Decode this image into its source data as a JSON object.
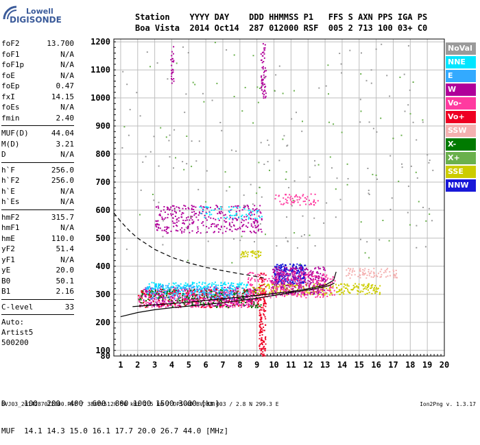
{
  "logo": {
    "line1": "Lowell",
    "line2": "DIGISONDE"
  },
  "header": {
    "line1": "Station    YYYY DAY    DDD HHMMSS P1   FFS S AXN PPS IGA PS",
    "line2": "Boa Vista  2014 Oct14  287 012000 RSF  005 2 713 100 03+ C0"
  },
  "params": [
    {
      "k": "foF2",
      "v": "13.700"
    },
    {
      "k": "foF1",
      "v": "N/A"
    },
    {
      "k": "foF1p",
      "v": "N/A"
    },
    {
      "k": "foE",
      "v": "N/A"
    },
    {
      "k": "foEp",
      "v": "0.47"
    },
    {
      "k": "fxI",
      "v": "14.15"
    },
    {
      "k": "foEs",
      "v": "N/A"
    },
    {
      "k": "fmin",
      "v": "2.40"
    },
    {
      "sep": true
    },
    {
      "k": "MUF(D)",
      "v": "44.04"
    },
    {
      "k": "M(D)",
      "v": "3.21"
    },
    {
      "k": "D",
      "v": "N/A"
    },
    {
      "sep": true
    },
    {
      "k": "h`F",
      "v": "256.0"
    },
    {
      "k": "h`F2",
      "v": "256.0"
    },
    {
      "k": "h`E",
      "v": "N/A"
    },
    {
      "k": "h`Es",
      "v": "N/A"
    },
    {
      "sep": true
    },
    {
      "k": "hmF2",
      "v": "315.7"
    },
    {
      "k": "hmF1",
      "v": "N/A"
    },
    {
      "k": "hmE",
      "v": "110.0"
    },
    {
      "k": "yF2",
      "v": "51.4"
    },
    {
      "k": "yF1",
      "v": "N/A"
    },
    {
      "k": "yE",
      "v": "20.0"
    },
    {
      "k": "B0",
      "v": "50.1"
    },
    {
      "k": "B1",
      "v": "2.16"
    },
    {
      "sep": true
    },
    {
      "k": "C-level",
      "v": "33"
    },
    {
      "sep": true
    },
    {
      "t": "Auto:"
    },
    {
      "t": "Artist5"
    },
    {
      "t": "500200"
    }
  ],
  "legend": [
    {
      "label": "NoVal",
      "color": "#9a9a9a"
    },
    {
      "label": "NNE",
      "color": "#00e5ff"
    },
    {
      "label": "E",
      "color": "#33aaff"
    },
    {
      "label": "W",
      "color": "#b0009a"
    },
    {
      "label": "Vo-",
      "color": "#ff3aa0"
    },
    {
      "label": "Vo+",
      "color": "#ee0022"
    },
    {
      "label": "SSW",
      "color": "#f4b0b0"
    },
    {
      "label": "X-",
      "color": "#007a00"
    },
    {
      "label": "X+",
      "color": "#6ab04c"
    },
    {
      "label": "SSE",
      "color": "#cccc00"
    },
    {
      "label": "NNW",
      "color": "#1818d8"
    }
  ],
  "bottom": {
    "line1": "D    100  200  400  600  800 1000 1500 3000 [km]",
    "line2": "MUF  14.1 14.3 15.0 16.1 17.7 20.0 26.7 44.0 [MHz]"
  },
  "footer": {
    "text": "BVJ03_2014287012000.RSF / 384fx512h 50 kHz 2.5 km / DPS-4D BVJ03 003 / 2.8 N 299.3 E",
    "version": "Ion2Png v. 1.3.17"
  },
  "chart_data": {
    "type": "scatter",
    "xlim": [
      0.6,
      20
    ],
    "ylim": [
      80,
      1210
    ],
    "x_ticks": [
      1,
      2,
      3,
      4,
      5,
      6,
      7,
      8,
      9,
      10,
      11,
      12,
      13,
      14,
      15,
      16,
      17,
      18,
      19,
      20
    ],
    "y_ticks": [
      80,
      100,
      200,
      300,
      400,
      500,
      600,
      700,
      800,
      900,
      1000,
      1100,
      1200
    ],
    "grid": true,
    "clusters": [
      {
        "cat": "Vo-",
        "x": [
          2.0,
          9.2
        ],
        "y": [
          255,
          320
        ],
        "n": 500
      },
      {
        "cat": "W",
        "x": [
          2.2,
          9.0
        ],
        "y": [
          260,
          330
        ],
        "n": 350
      },
      {
        "cat": "NNE",
        "x": [
          2.5,
          8.5
        ],
        "y": [
          300,
          345
        ],
        "n": 250
      },
      {
        "cat": "E",
        "x": [
          2.4,
          7.6
        ],
        "y": [
          285,
          335
        ],
        "n": 150
      },
      {
        "cat": "X-",
        "x": [
          2.0,
          9.2
        ],
        "y": [
          255,
          320
        ],
        "n": 180
      },
      {
        "cat": "Vo+",
        "x": [
          2.0,
          9.2
        ],
        "y": [
          255,
          320
        ],
        "n": 120
      },
      {
        "cat": "SSE",
        "x": [
          8.7,
          16.2
        ],
        "y": [
          300,
          340
        ],
        "n": 300
      },
      {
        "cat": "NNW",
        "x": [
          10.0,
          11.8
        ],
        "y": [
          340,
          410
        ],
        "n": 260
      },
      {
        "cat": "W",
        "x": [
          9.8,
          13.0
        ],
        "y": [
          300,
          400
        ],
        "n": 320
      },
      {
        "cat": "Vo-",
        "x": [
          8.4,
          13.6
        ],
        "y": [
          290,
          380
        ],
        "n": 250
      },
      {
        "cat": "SSW",
        "x": [
          14.2,
          17.2
        ],
        "y": [
          360,
          395
        ],
        "n": 80
      },
      {
        "cat": "W",
        "x": [
          3.0,
          9.3
        ],
        "y": [
          520,
          620
        ],
        "n": 320
      },
      {
        "cat": "NNE",
        "x": [
          5.5,
          9.3
        ],
        "y": [
          570,
          615
        ],
        "n": 60
      },
      {
        "cat": "Vo-",
        "x": [
          10.0,
          12.6
        ],
        "y": [
          620,
          660
        ],
        "n": 60
      },
      {
        "cat": "SSE",
        "x": [
          8.0,
          9.2
        ],
        "y": [
          430,
          460
        ],
        "n": 40
      },
      {
        "cat": "Vo+",
        "x": [
          9.1,
          9.5
        ],
        "y": [
          80,
          380
        ],
        "n": 140
      },
      {
        "cat": "W",
        "x": [
          9.2,
          9.5
        ],
        "y": [
          1000,
          1200
        ],
        "n": 60
      },
      {
        "cat": "W",
        "x": [
          3.9,
          4.1
        ],
        "y": [
          1050,
          1190
        ],
        "n": 25
      },
      {
        "cat": "NoVal",
        "x": [
          1.0,
          19.5
        ],
        "y": [
          450,
          1200
        ],
        "n": 160
      },
      {
        "cat": "X+",
        "x": [
          1.0,
          19.5
        ],
        "y": [
          400,
          1200
        ],
        "n": 80
      }
    ],
    "curves": [
      {
        "name": "",
        "style": "solid",
        "x": [
          1,
          2,
          3,
          4,
          5,
          6,
          7,
          8,
          9,
          10,
          11,
          12,
          12.5,
          13,
          13.3,
          13.55
        ],
        "y": [
          220,
          235,
          245,
          252,
          258,
          264,
          270,
          278,
          286,
          296,
          306,
          316,
          321,
          327,
          332,
          340
        ]
      },
      {
        "name": "",
        "style": "solid",
        "x": [
          1.7,
          3,
          5,
          7,
          9,
          11,
          12,
          13,
          13.5,
          13.65
        ],
        "y": [
          256,
          262,
          272,
          284,
          296,
          310,
          320,
          332,
          350,
          380
        ]
      },
      {
        "name": "",
        "style": "dashed",
        "x": [
          0.6,
          1,
          1.5,
          2,
          3,
          4,
          5,
          6,
          7,
          8,
          9,
          9.4
        ],
        "y": [
          590,
          560,
          527,
          500,
          460,
          432,
          412,
          396,
          384,
          373,
          363,
          358
        ]
      }
    ]
  }
}
